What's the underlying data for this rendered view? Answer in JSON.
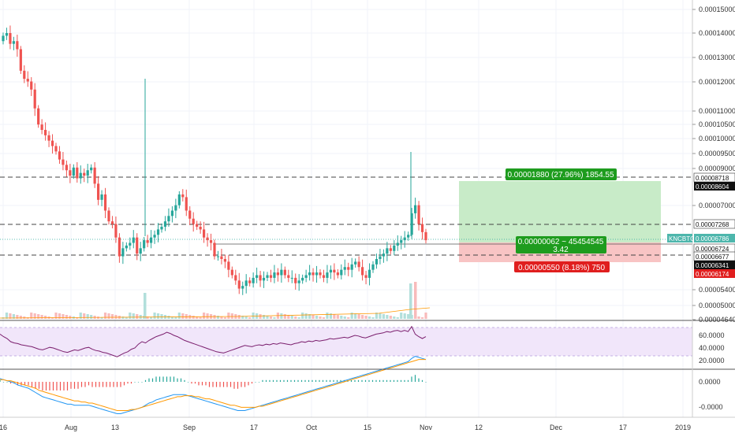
{
  "colors": {
    "up": "#26a69a",
    "down": "#ef5350",
    "rsi_line": "#7b1f6e",
    "rsi_band": "#f1e6fa",
    "macd_line": "#2196f3",
    "signal_line": "#ff9800",
    "profit_zone": "#c8ebc8",
    "loss_zone": "#f8c4c4",
    "profit_badge": "#1e9c1e",
    "loss_badge": "#e01e1e",
    "black_badge": "#111111",
    "price_line_badge": "#4db6ac"
  },
  "chart_data": [
    {
      "type": "candlestick",
      "panel": "price",
      "x_tick_labels": [
        "16",
        "Aug",
        "13",
        "Sep",
        "17",
        "Oct",
        "15",
        "Nov",
        "12",
        "Dec",
        "17",
        "2019"
      ],
      "y_tick_labels": [
        "0.00015000",
        "0.00014000",
        "0.00013000",
        "0.00012000",
        "0.00011000",
        "0.00010500",
        "0.00010000",
        "0.00009500",
        "0.00009000",
        "0.00007000",
        "0.00005400",
        "0.00005000",
        "0.00004640"
      ],
      "candles_close": [
        1.45,
        1.46,
        1.42,
        1.43,
        1.4,
        1.32,
        1.29,
        1.28,
        1.25,
        1.18,
        1.12,
        1.1,
        1.08,
        1.06,
        1.04,
        1.02,
        0.99,
        0.97,
        0.95,
        0.93,
        0.96,
        0.92,
        0.94,
        0.93,
        0.95,
        0.96,
        0.9,
        0.84,
        0.86,
        0.8,
        0.76,
        0.75,
        0.7,
        0.63,
        0.66,
        0.67,
        0.68,
        0.7,
        0.64,
        0.66,
        0.69,
        0.68,
        0.7,
        0.71,
        0.73,
        0.74,
        0.76,
        0.78,
        0.8,
        0.82,
        0.86,
        0.85,
        0.8,
        0.77,
        0.75,
        0.74,
        0.73,
        0.7,
        0.69,
        0.68,
        0.63,
        0.63,
        0.62,
        0.61,
        0.58,
        0.56,
        0.54,
        0.51,
        0.52,
        0.54,
        0.53,
        0.55,
        0.56,
        0.54,
        0.55,
        0.56,
        0.55,
        0.57,
        0.56,
        0.58,
        0.56,
        0.55,
        0.55,
        0.53,
        0.54,
        0.55,
        0.56,
        0.57,
        0.56,
        0.57,
        0.56,
        0.55,
        0.57,
        0.58,
        0.57,
        0.56,
        0.58,
        0.59,
        0.58,
        0.6,
        0.61,
        0.59,
        0.56,
        0.55,
        0.58,
        0.6,
        0.62,
        0.63,
        0.64,
        0.66,
        0.65,
        0.67,
        0.68,
        0.69,
        0.7,
        0.71,
        0.79,
        0.82,
        0.75,
        0.72,
        0.69
      ],
      "price_levels": [
        {
          "label": "0.00008718",
          "style": "dashed"
        },
        {
          "label": "0.00007268",
          "style": "dashed"
        },
        {
          "label": "0.00006677",
          "style": "dashed"
        }
      ],
      "axis_badges": [
        {
          "label": "0.00008718",
          "kind": "white"
        },
        {
          "label": "0.00008604",
          "kind": "black"
        },
        {
          "label": "0.00007268",
          "kind": "white"
        },
        {
          "label": "KNCBTC",
          "kind": "teal-tag"
        },
        {
          "label": "0.00006786",
          "kind": "teal"
        },
        {
          "label": "0.00006724",
          "kind": "white"
        },
        {
          "label": "0.00006677",
          "kind": "white"
        },
        {
          "label": "0.00006341",
          "kind": "black"
        },
        {
          "label": "0.00006174",
          "kind": "red"
        }
      ],
      "position_tool": {
        "profit_label": "0.00001880 (27.96%) 1854.55",
        "mid_label_line1": "0.00000062 ~ 45454545",
        "mid_label_line2": "3.42",
        "loss_label": "0.00000550 (8.18%) 750"
      }
    },
    {
      "type": "line",
      "panel": "rsi",
      "y_tick_labels": [
        "60.0000",
        "40.0000",
        "20.0000"
      ],
      "ylim": [
        10,
        80
      ],
      "series": [
        {
          "values": [
            62,
            58,
            55,
            50,
            48,
            47,
            45,
            44,
            43,
            42,
            40,
            38,
            37,
            39,
            41,
            40,
            38,
            36,
            34,
            33,
            35,
            37,
            36,
            38,
            40,
            41,
            38,
            36,
            35,
            33,
            32,
            30,
            28,
            26,
            29,
            32,
            34,
            38,
            40,
            46,
            50,
            48,
            52,
            55,
            58,
            60,
            62,
            65,
            63,
            60,
            58,
            55,
            52,
            50,
            48,
            46,
            44,
            42,
            40,
            38,
            36,
            34,
            33,
            32,
            34,
            36,
            38,
            40,
            42,
            44,
            43,
            42,
            44,
            45,
            44,
            46,
            45,
            47,
            46,
            48,
            47,
            46,
            45,
            47,
            48,
            50,
            49,
            51,
            50,
            52,
            51,
            52,
            53,
            55,
            54,
            55,
            56,
            57,
            56,
            58,
            60,
            59,
            57,
            56,
            58,
            60,
            62,
            63,
            64,
            66,
            65,
            67,
            68,
            66,
            68,
            66,
            74,
            62,
            58,
            55,
            58
          ]
        }
      ]
    },
    {
      "type": "line",
      "panel": "macd",
      "y_tick_labels": [
        "0.0000",
        "-0.0000"
      ],
      "series": [
        {
          "values": [
            3,
            2,
            1,
            0,
            -1,
            -3,
            -4,
            -5,
            -6,
            -8,
            -10,
            -12,
            -14,
            -15,
            -16,
            -17,
            -18,
            -19,
            -20,
            -21,
            -21,
            -22,
            -22,
            -22,
            -22,
            -22,
            -23,
            -24,
            -25,
            -26,
            -27,
            -28,
            -29,
            -30,
            -30,
            -29,
            -28,
            -27,
            -26,
            -25,
            -24,
            -22,
            -20,
            -19,
            -17,
            -16,
            -15,
            -14,
            -13,
            -12,
            -12,
            -12,
            -12,
            -13,
            -14,
            -15,
            -16,
            -17,
            -18,
            -19,
            -20,
            -21,
            -22,
            -23,
            -24,
            -25,
            -26,
            -27,
            -27,
            -27,
            -26,
            -25,
            -24,
            -23,
            -22,
            -21,
            -20,
            -19,
            -18,
            -17,
            -16,
            -15,
            -14,
            -13,
            -12,
            -11,
            -10,
            -9,
            -8,
            -7,
            -6,
            -5,
            -4,
            -3,
            -2,
            -1,
            0,
            1,
            2,
            3,
            4,
            5,
            6,
            7,
            8,
            9,
            10,
            11,
            12,
            13,
            14,
            15,
            16,
            17,
            18,
            19,
            22,
            24,
            23,
            22,
            21
          ]
        },
        {
          "values": [
            2,
            2,
            1,
            1,
            0,
            -1,
            -2,
            -3,
            -4,
            -5,
            -6,
            -8,
            -9,
            -10,
            -11,
            -12,
            -13,
            -14,
            -15,
            -16,
            -17,
            -18,
            -18,
            -19,
            -19,
            -20,
            -20,
            -21,
            -22,
            -23,
            -24,
            -25,
            -26,
            -27,
            -27,
            -27,
            -27,
            -26,
            -26,
            -25,
            -24,
            -23,
            -22,
            -21,
            -20,
            -19,
            -18,
            -17,
            -16,
            -15,
            -14,
            -14,
            -13,
            -13,
            -13,
            -14,
            -14,
            -15,
            -16,
            -16,
            -17,
            -18,
            -19,
            -20,
            -21,
            -22,
            -22,
            -23,
            -24,
            -24,
            -24,
            -24,
            -24,
            -23,
            -23,
            -22,
            -21,
            -20,
            -19,
            -18,
            -17,
            -16,
            -15,
            -14,
            -13,
            -12,
            -11,
            -10,
            -9,
            -8,
            -7,
            -6,
            -5,
            -4,
            -3,
            -2,
            -1,
            0,
            1,
            2,
            3,
            4,
            5,
            6,
            7,
            8,
            9,
            10,
            11,
            12,
            13,
            14,
            15,
            16,
            17,
            18,
            19,
            20,
            21,
            21,
            21
          ]
        }
      ]
    }
  ]
}
